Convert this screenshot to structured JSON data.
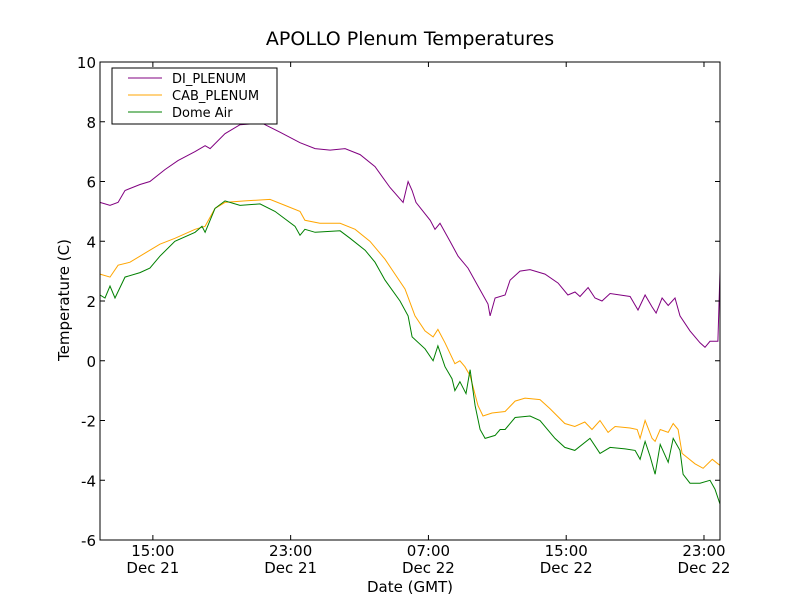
{
  "chart_data": {
    "type": "line",
    "title": "APOLLO Plenum Temperatures",
    "xlabel": "Date (GMT)",
    "ylabel": "Temperature (C)",
    "x_units": "hours since Dec 21 00:00 GMT",
    "xlim": [
      11.93,
      47.93
    ],
    "ylim": [
      -6,
      10
    ],
    "grid": false,
    "legend_position": "top-left",
    "yticks": [
      {
        "value": -6,
        "label": "-6"
      },
      {
        "value": -4,
        "label": "-4"
      },
      {
        "value": -2,
        "label": "-2"
      },
      {
        "value": 0,
        "label": "0"
      },
      {
        "value": 2,
        "label": "2"
      },
      {
        "value": 4,
        "label": "4"
      },
      {
        "value": 6,
        "label": "6"
      },
      {
        "value": 8,
        "label": "8"
      },
      {
        "value": 10,
        "label": "10"
      }
    ],
    "xticks": [
      {
        "value": 15,
        "time": "15:00",
        "date": "Dec 21"
      },
      {
        "value": 23,
        "time": "23:00",
        "date": "Dec 21"
      },
      {
        "value": 31,
        "time": "07:00",
        "date": "Dec 22"
      },
      {
        "value": 39,
        "time": "15:00",
        "date": "Dec 22"
      },
      {
        "value": 47,
        "time": "23:00",
        "date": "Dec 22"
      }
    ],
    "series": [
      {
        "name": "DI_PLENUM",
        "color": "#800080",
        "points": [
          [
            11.93,
            5.3
          ],
          [
            12.51,
            5.2
          ],
          [
            12.98,
            5.3
          ],
          [
            13.38,
            5.7
          ],
          [
            14.25,
            5.9
          ],
          [
            14.83,
            6.0
          ],
          [
            15.7,
            6.4
          ],
          [
            16.46,
            6.7
          ],
          [
            17.45,
            7.0
          ],
          [
            18.03,
            7.2
          ],
          [
            18.32,
            7.1
          ],
          [
            19.19,
            7.6
          ],
          [
            20.06,
            7.9
          ],
          [
            21.34,
            7.95
          ],
          [
            22.38,
            7.65
          ],
          [
            23.54,
            7.3
          ],
          [
            24.42,
            7.1
          ],
          [
            25.29,
            7.05
          ],
          [
            26.16,
            7.1
          ],
          [
            27.03,
            6.9
          ],
          [
            27.9,
            6.5
          ],
          [
            28.77,
            5.8
          ],
          [
            29.53,
            5.3
          ],
          [
            29.82,
            6.0
          ],
          [
            30.05,
            5.7
          ],
          [
            30.28,
            5.3
          ],
          [
            31.1,
            4.7
          ],
          [
            31.38,
            4.4
          ],
          [
            31.67,
            4.6
          ],
          [
            32.25,
            4.0
          ],
          [
            32.72,
            3.5
          ],
          [
            33.3,
            3.1
          ],
          [
            33.88,
            2.5
          ],
          [
            34.46,
            1.9
          ],
          [
            34.58,
            1.5
          ],
          [
            34.87,
            2.1
          ],
          [
            35.45,
            2.2
          ],
          [
            35.74,
            2.7
          ],
          [
            36.32,
            3.0
          ],
          [
            36.9,
            3.05
          ],
          [
            37.77,
            2.9
          ],
          [
            38.53,
            2.6
          ],
          [
            39.1,
            2.2
          ],
          [
            39.51,
            2.3
          ],
          [
            39.8,
            2.15
          ],
          [
            40.27,
            2.45
          ],
          [
            40.67,
            2.1
          ],
          [
            41.08,
            2.0
          ],
          [
            41.55,
            2.25
          ],
          [
            42.13,
            2.2
          ],
          [
            42.71,
            2.15
          ],
          [
            43.17,
            1.7
          ],
          [
            43.58,
            2.2
          ],
          [
            43.99,
            1.8
          ],
          [
            44.22,
            1.6
          ],
          [
            44.57,
            2.1
          ],
          [
            44.92,
            1.85
          ],
          [
            45.32,
            2.1
          ],
          [
            45.61,
            1.5
          ],
          [
            46.19,
            1.0
          ],
          [
            46.77,
            0.6
          ],
          [
            47.06,
            0.45
          ],
          [
            47.35,
            0.65
          ],
          [
            47.81,
            0.65
          ],
          [
            47.93,
            3.0
          ]
        ]
      },
      {
        "name": "CAB_PLENUM",
        "color": "#ffa500",
        "points": [
          [
            11.93,
            2.9
          ],
          [
            12.51,
            2.8
          ],
          [
            12.98,
            3.2
          ],
          [
            13.67,
            3.3
          ],
          [
            14.54,
            3.6
          ],
          [
            15.41,
            3.9
          ],
          [
            16.28,
            4.1
          ],
          [
            17.45,
            4.4
          ],
          [
            18.03,
            4.5
          ],
          [
            18.61,
            5.1
          ],
          [
            19.19,
            5.3
          ],
          [
            20.35,
            5.35
          ],
          [
            21.8,
            5.4
          ],
          [
            22.67,
            5.2
          ],
          [
            23.54,
            5.0
          ],
          [
            23.83,
            4.7
          ],
          [
            24.7,
            4.6
          ],
          [
            25.87,
            4.6
          ],
          [
            26.74,
            4.4
          ],
          [
            27.61,
            4.0
          ],
          [
            28.48,
            3.4
          ],
          [
            29.06,
            2.9
          ],
          [
            29.64,
            2.4
          ],
          [
            30.22,
            1.5
          ],
          [
            30.8,
            1.0
          ],
          [
            31.27,
            0.8
          ],
          [
            31.55,
            1.05
          ],
          [
            31.96,
            0.6
          ],
          [
            32.54,
            -0.1
          ],
          [
            32.83,
            0.0
          ],
          [
            33.12,
            -0.2
          ],
          [
            33.42,
            -0.5
          ],
          [
            33.88,
            -1.5
          ],
          [
            34.17,
            -1.85
          ],
          [
            34.69,
            -1.75
          ],
          [
            35.45,
            -1.7
          ],
          [
            36.03,
            -1.35
          ],
          [
            36.61,
            -1.25
          ],
          [
            37.48,
            -1.3
          ],
          [
            38.05,
            -1.6
          ],
          [
            38.92,
            -2.1
          ],
          [
            39.5,
            -2.2
          ],
          [
            40.08,
            -2.05
          ],
          [
            40.5,
            -2.3
          ],
          [
            40.96,
            -2.0
          ],
          [
            41.43,
            -2.4
          ],
          [
            41.84,
            -2.2
          ],
          [
            42.71,
            -2.25
          ],
          [
            43.12,
            -2.3
          ],
          [
            43.29,
            -2.6
          ],
          [
            43.58,
            -2.0
          ],
          [
            43.99,
            -2.6
          ],
          [
            44.16,
            -2.7
          ],
          [
            44.46,
            -2.3
          ],
          [
            44.92,
            -2.4
          ],
          [
            45.21,
            -2.1
          ],
          [
            45.5,
            -2.3
          ],
          [
            45.73,
            -3.1
          ],
          [
            46.48,
            -3.45
          ],
          [
            46.95,
            -3.6
          ],
          [
            47.48,
            -3.3
          ],
          [
            47.81,
            -3.45
          ],
          [
            47.93,
            -3.5
          ]
        ]
      },
      {
        "name": "Dome Air",
        "color": "#008000",
        "points": [
          [
            11.93,
            2.2
          ],
          [
            12.22,
            2.1
          ],
          [
            12.51,
            2.5
          ],
          [
            12.8,
            2.1
          ],
          [
            13.38,
            2.8
          ],
          [
            14.25,
            2.95
          ],
          [
            14.83,
            3.1
          ],
          [
            15.41,
            3.5
          ],
          [
            16.28,
            4.0
          ],
          [
            17.45,
            4.3
          ],
          [
            17.85,
            4.5
          ],
          [
            18.03,
            4.3
          ],
          [
            18.61,
            5.1
          ],
          [
            19.19,
            5.35
          ],
          [
            20.06,
            5.2
          ],
          [
            21.22,
            5.25
          ],
          [
            22.09,
            5.0
          ],
          [
            23.25,
            4.5
          ],
          [
            23.54,
            4.2
          ],
          [
            23.83,
            4.4
          ],
          [
            24.42,
            4.3
          ],
          [
            25.87,
            4.35
          ],
          [
            26.45,
            4.1
          ],
          [
            27.32,
            3.7
          ],
          [
            27.9,
            3.3
          ],
          [
            28.48,
            2.7
          ],
          [
            29.35,
            2.0
          ],
          [
            29.82,
            1.5
          ],
          [
            30.05,
            0.8
          ],
          [
            30.8,
            0.4
          ],
          [
            31.27,
            0.0
          ],
          [
            31.55,
            0.5
          ],
          [
            31.96,
            -0.2
          ],
          [
            32.37,
            -0.6
          ],
          [
            32.54,
            -1.0
          ],
          [
            32.83,
            -0.7
          ],
          [
            33.18,
            -1.1
          ],
          [
            33.42,
            -0.3
          ],
          [
            33.71,
            -1.5
          ],
          [
            34.0,
            -2.3
          ],
          [
            34.29,
            -2.6
          ],
          [
            34.87,
            -2.5
          ],
          [
            35.16,
            -2.3
          ],
          [
            35.45,
            -2.3
          ],
          [
            36.03,
            -1.9
          ],
          [
            36.9,
            -1.85
          ],
          [
            37.48,
            -2.0
          ],
          [
            38.35,
            -2.6
          ],
          [
            38.92,
            -2.9
          ],
          [
            39.5,
            -3.0
          ],
          [
            40.38,
            -2.6
          ],
          [
            40.96,
            -3.1
          ],
          [
            41.55,
            -2.9
          ],
          [
            42.42,
            -2.95
          ],
          [
            43.0,
            -3.0
          ],
          [
            43.29,
            -3.3
          ],
          [
            43.58,
            -2.7
          ],
          [
            43.87,
            -3.2
          ],
          [
            44.16,
            -3.8
          ],
          [
            44.46,
            -2.8
          ],
          [
            44.92,
            -3.4
          ],
          [
            45.21,
            -2.6
          ],
          [
            45.61,
            -3.0
          ],
          [
            45.79,
            -3.8
          ],
          [
            46.19,
            -4.1
          ],
          [
            46.77,
            -4.1
          ],
          [
            47.35,
            -4.0
          ],
          [
            47.64,
            -4.3
          ],
          [
            47.93,
            -4.8
          ]
        ]
      }
    ]
  }
}
